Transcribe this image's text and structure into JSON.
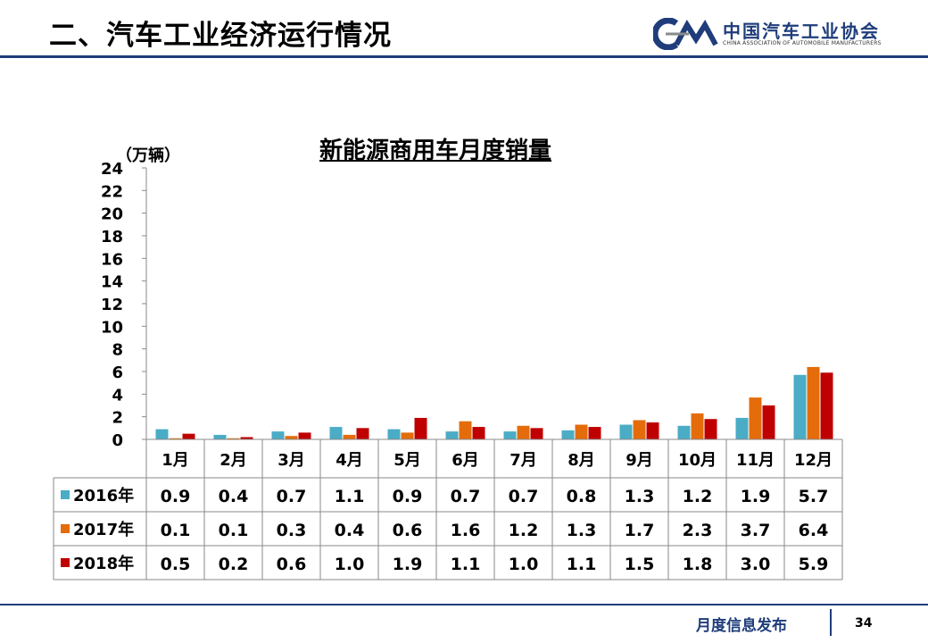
{
  "header": {
    "title": "二、汽车工业经济运行情况",
    "logo_cn": "中国汽车工业协会",
    "logo_en": "CHINA ASSOCIATION OF AUTOMOBILE MANUFACTURERS"
  },
  "footer": {
    "text": "月度信息发布",
    "page": "34"
  },
  "colors": {
    "s2016": "#4bacc6",
    "s2017": "#e46c0a",
    "s2018": "#c00000",
    "brand": "#1f3d7a"
  },
  "chart_data": {
    "type": "bar",
    "title": "新能源商用车月度销量",
    "ylabel": "（万辆）",
    "ylim": [
      0,
      24
    ],
    "yticks": [
      "0",
      "2",
      "4",
      "6",
      "8",
      "10",
      "12",
      "14",
      "16",
      "18",
      "20",
      "22",
      "24"
    ],
    "categories": [
      "1月",
      "2月",
      "3月",
      "4月",
      "5月",
      "6月",
      "7月",
      "8月",
      "9月",
      "10月",
      "11月",
      "12月"
    ],
    "series": [
      {
        "name": "2016年",
        "color": "#4bacc6",
        "values": [
          0.9,
          0.4,
          0.7,
          1.1,
          0.9,
          0.7,
          0.7,
          0.8,
          1.3,
          1.2,
          1.9,
          5.7
        ],
        "labels": [
          "0.9",
          "0.4",
          "0.7",
          "1.1",
          "0.9",
          "0.7",
          "0.7",
          "0.8",
          "1.3",
          "1.2",
          "1.9",
          "5.7"
        ]
      },
      {
        "name": "2017年",
        "color": "#e46c0a",
        "values": [
          0.1,
          0.1,
          0.3,
          0.4,
          0.6,
          1.6,
          1.2,
          1.3,
          1.7,
          2.3,
          3.7,
          6.4
        ],
        "labels": [
          "0.1",
          "0.1",
          "0.3",
          "0.4",
          "0.6",
          "1.6",
          "1.2",
          "1.3",
          "1.7",
          "2.3",
          "3.7",
          "6.4"
        ]
      },
      {
        "name": "2018年",
        "color": "#c00000",
        "values": [
          0.5,
          0.2,
          0.6,
          1.0,
          1.9,
          1.1,
          1.0,
          1.1,
          1.5,
          1.8,
          3.0,
          5.9
        ],
        "labels": [
          "0.5",
          "0.2",
          "0.6",
          "1.0",
          "1.9",
          "1.1",
          "1.0",
          "1.1",
          "1.5",
          "1.8",
          "3.0",
          "5.9"
        ]
      }
    ],
    "grid": false,
    "legend": "data-table"
  }
}
